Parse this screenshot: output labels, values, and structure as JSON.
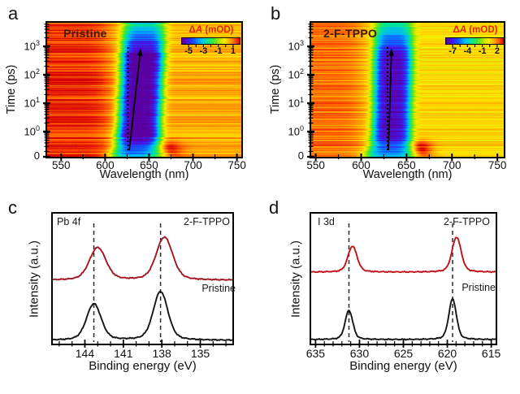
{
  "figure": {
    "background": "#ffffff"
  },
  "chart_data": [
    {
      "panel": "a",
      "type": "heatmap",
      "title": "Pristine",
      "xlabel": "Wavelength (nm)",
      "ylabel": "Time (ps)",
      "x_range_nm": [
        534,
        755
      ],
      "x_ticks_nm": [
        550,
        600,
        650,
        700,
        750
      ],
      "x_minor_step_nm": 25,
      "y_axis_scale": "log-time",
      "y_ticks_ps": [
        0,
        1,
        10,
        100,
        1000
      ],
      "colorbar": {
        "delta": "Δ",
        "symbol": "A",
        "unit": "(mOD)",
        "ticks_mOD": [
          -5,
          -3,
          -1,
          1
        ],
        "vmin_mOD": -6,
        "vmax_mOD": 2,
        "label_color": "#e02400"
      },
      "annotations": {
        "dashed_line_nm": 626,
        "arrow_from_nm": 627.5,
        "arrow_to_nm": 640.5,
        "time_span_ps": [
          0.22,
          850
        ]
      },
      "model": {
        "base_left_mOD": 1.65,
        "base_right_mOD": 0.5,
        "base_edge_nm": 604,
        "bleach_center_nm": 637.5,
        "bleach_drift_nm": 7,
        "bleach_width_nm": 24,
        "bleach_amp_mOD": 6.9,
        "hotspot_nm": 668,
        "hotspot_width_nm": 13,
        "hotspot_amp_mOD": 1.5,
        "noise_mOD": 0.5,
        "seed": 7
      }
    },
    {
      "panel": "b",
      "type": "heatmap",
      "title": "2-F-TPPO",
      "xlabel": "Wavelength (nm)",
      "ylabel": "Time (ps)",
      "x_range_nm": [
        545,
        757
      ],
      "x_ticks_nm": [
        550,
        600,
        650,
        700,
        750
      ],
      "x_minor_step_nm": 25,
      "y_axis_scale": "log-time",
      "y_ticks_ps": [
        0,
        1,
        10,
        100,
        1000
      ],
      "colorbar": {
        "delta": "Δ",
        "symbol": "A",
        "unit": "(mOD)",
        "ticks_mOD": [
          -7,
          -4,
          -1,
          2
        ],
        "vmin_mOD": -8.5,
        "vmax_mOD": 3.5,
        "label_color": "#e02400"
      },
      "annotations": {
        "dashed_line_nm": 629,
        "arrow_from_nm": 630,
        "arrow_to_nm": 633.5,
        "time_span_ps": [
          0.22,
          850
        ]
      },
      "model": {
        "base_left_mOD": 2.3,
        "base_right_mOD": 0.62,
        "base_edge_nm": 602,
        "bleach_center_nm": 633,
        "bleach_drift_nm": 3,
        "bleach_width_nm": 21,
        "bleach_amp_mOD": 8.7,
        "hotspot_nm": 665,
        "hotspot_width_nm": 10,
        "hotspot_amp_mOD": 3.0,
        "noise_mOD": 0.7,
        "seed": 11
      }
    },
    {
      "panel": "c",
      "type": "line",
      "element_label": "Pb 4f",
      "xlabel": "Binding energy (eV)",
      "ylabel": "Intensity (a.u.)",
      "x_range_eV": [
        146.5,
        132.5
      ],
      "x_ticks_eV": [
        144,
        141,
        138,
        135
      ],
      "x_minor_step_eV": 1,
      "dashed_lines_eV": [
        143.3,
        138.1
      ],
      "series": [
        {
          "name": "2-F-TPPO",
          "color": "#a3151f",
          "baseline_frac": 0.4875,
          "peaks": [
            {
              "center_eV": 143.0,
              "height_frac": 0.25,
              "sigma_eV": 0.62
            },
            {
              "center_eV": 137.8,
              "height_frac": 0.33,
              "sigma_eV": 0.62
            }
          ]
        },
        {
          "name": "Pristine",
          "color": "#151515",
          "baseline_frac": 0.025,
          "peaks": [
            {
              "center_eV": 143.3,
              "height_frac": 0.28,
              "sigma_eV": 0.55
            },
            {
              "center_eV": 138.1,
              "height_frac": 0.375,
              "sigma_eV": 0.55
            }
          ]
        }
      ]
    },
    {
      "panel": "d",
      "type": "line",
      "element_label": "I 3d",
      "xlabel": "Binding energy (eV)",
      "ylabel": "Intensity (a.u.)",
      "x_range_eV": [
        635.5,
        614.5
      ],
      "x_ticks_eV": [
        635,
        630,
        625,
        620,
        615
      ],
      "x_minor_step_eV": 1,
      "dashed_lines_eV": [
        631.2,
        619.4
      ],
      "series": [
        {
          "name": "2-F-TPPO",
          "color": "#c01318",
          "baseline_frac": 0.55,
          "peaks": [
            {
              "center_eV": 630.8,
              "height_frac": 0.2,
              "sigma_eV": 0.5
            },
            {
              "center_eV": 618.95,
              "height_frac": 0.27,
              "sigma_eV": 0.5
            }
          ]
        },
        {
          "name": "Pristine",
          "color": "#151515",
          "baseline_frac": 0.031,
          "peaks": [
            {
              "center_eV": 631.2,
              "height_frac": 0.225,
              "sigma_eV": 0.42
            },
            {
              "center_eV": 619.4,
              "height_frac": 0.3125,
              "sigma_eV": 0.42
            }
          ]
        }
      ]
    }
  ]
}
